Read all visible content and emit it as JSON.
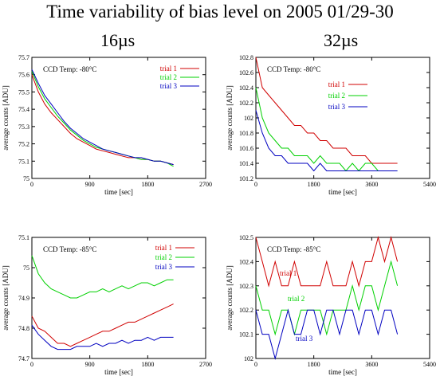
{
  "title": "Time variability of bias level on 2005 01/29-30",
  "column_titles": [
    "16µs",
    "32µs"
  ],
  "colors": {
    "trial 1": "#d00000",
    "trial 2": "#00d000",
    "trial 3": "#0000c0"
  },
  "chart_data": [
    {
      "type": "line",
      "panel": "top-left",
      "annotation": "CCD Temp: -80°C",
      "xlabel": "time [sec]",
      "ylabel": "average counts [ADU]",
      "xlim": [
        0,
        2700
      ],
      "ylim": [
        75.0,
        75.7
      ],
      "xticks": [
        0,
        900,
        1800,
        2700
      ],
      "yticks": [
        75.0,
        75.1,
        75.2,
        75.3,
        75.4,
        75.5,
        75.6,
        75.7
      ],
      "ytick_labels": [
        "75",
        "75.1",
        "75.2",
        "75.3",
        "75.4",
        "75.5",
        "75.6",
        "75.7"
      ],
      "grid": false,
      "legend": "top-right",
      "series": [
        {
          "name": "trial 1",
          "x": [
            0,
            100,
            200,
            300,
            400,
            500,
            600,
            700,
            800,
            900,
            1000,
            1100,
            1200,
            1300,
            1400,
            1500,
            1600,
            1700,
            1800,
            1900,
            2000,
            2100,
            2200
          ],
          "y": [
            75.6,
            75.5,
            75.43,
            75.38,
            75.34,
            75.3,
            75.26,
            75.23,
            75.21,
            75.19,
            75.17,
            75.16,
            75.15,
            75.14,
            75.13,
            75.12,
            75.12,
            75.11,
            75.11,
            75.1,
            75.1,
            75.09,
            75.08
          ]
        },
        {
          "name": "trial 2",
          "x": [
            0,
            100,
            200,
            300,
            400,
            500,
            600,
            700,
            800,
            900,
            1000,
            1100,
            1200,
            1300,
            1400,
            1500,
            1600,
            1700,
            1800,
            1900,
            2000,
            2100,
            2200
          ],
          "y": [
            75.62,
            75.53,
            75.46,
            75.41,
            75.36,
            75.32,
            75.28,
            75.25,
            75.22,
            75.2,
            75.18,
            75.17,
            75.16,
            75.15,
            75.14,
            75.13,
            75.12,
            75.11,
            75.11,
            75.1,
            75.1,
            75.09,
            75.07
          ]
        },
        {
          "name": "trial 3",
          "x": [
            0,
            100,
            200,
            300,
            400,
            500,
            600,
            700,
            800,
            900,
            1000,
            1100,
            1200,
            1300,
            1400,
            1500,
            1600,
            1700,
            1800,
            1900,
            2000,
            2100,
            2200
          ],
          "y": [
            75.63,
            75.55,
            75.48,
            75.43,
            75.38,
            75.33,
            75.29,
            75.26,
            75.23,
            75.21,
            75.19,
            75.17,
            75.16,
            75.15,
            75.14,
            75.13,
            75.12,
            75.12,
            75.11,
            75.1,
            75.1,
            75.09,
            75.08
          ]
        }
      ]
    },
    {
      "type": "line",
      "panel": "top-right",
      "annotation": "CCD Temp: -80°C",
      "xlabel": "time [sec]",
      "ylabel": "average counts [ADU]",
      "xlim": [
        0,
        5400
      ],
      "ylim": [
        101.2,
        102.8
      ],
      "xticks": [
        0,
        1800,
        3600,
        5400
      ],
      "yticks": [
        101.2,
        101.4,
        101.6,
        101.8,
        102.0,
        102.2,
        102.4,
        102.6,
        102.8
      ],
      "ytick_labels": [
        "101.2",
        "101.4",
        "101.6",
        "101.8",
        "102",
        "102.2",
        "102.4",
        "102.6",
        "102.8"
      ],
      "grid": false,
      "legend": "top-right",
      "series": [
        {
          "name": "trial 1",
          "x": [
            0,
            200,
            400,
            600,
            800,
            1000,
            1200,
            1400,
            1600,
            1800,
            2000,
            2200,
            2400,
            2600,
            2800,
            3000,
            3200,
            3400,
            3600,
            3800,
            4000,
            4200,
            4400
          ],
          "y": [
            102.8,
            102.4,
            102.3,
            102.2,
            102.1,
            102.0,
            101.9,
            101.9,
            101.8,
            101.8,
            101.7,
            101.7,
            101.6,
            101.6,
            101.6,
            101.5,
            101.5,
            101.5,
            101.4,
            101.4,
            101.4,
            101.4,
            101.4
          ]
        },
        {
          "name": "trial 2",
          "x": [
            0,
            200,
            400,
            600,
            800,
            1000,
            1200,
            1400,
            1600,
            1800,
            2000,
            2200,
            2400,
            2600,
            2800,
            3000,
            3200,
            3400,
            3600,
            3800,
            4000,
            4200,
            4400
          ],
          "y": [
            102.4,
            102.0,
            101.8,
            101.7,
            101.6,
            101.6,
            101.5,
            101.5,
            101.5,
            101.4,
            101.5,
            101.4,
            101.4,
            101.4,
            101.3,
            101.4,
            101.3,
            101.4,
            101.4,
            101.3,
            101.3,
            101.3,
            101.3
          ]
        },
        {
          "name": "trial 3",
          "x": [
            0,
            200,
            400,
            600,
            800,
            1000,
            1200,
            1400,
            1600,
            1800,
            2000,
            2200,
            2400,
            2600,
            2800,
            3000,
            3200,
            3400,
            3600,
            3800,
            4000,
            4200,
            4400
          ],
          "y": [
            102.1,
            101.8,
            101.6,
            101.5,
            101.5,
            101.4,
            101.4,
            101.4,
            101.4,
            101.3,
            101.4,
            101.3,
            101.3,
            101.3,
            101.3,
            101.3,
            101.3,
            101.3,
            101.3,
            101.3,
            101.3,
            101.3,
            101.3
          ]
        }
      ]
    },
    {
      "type": "line",
      "panel": "bottom-left",
      "annotation": "CCD Temp: -85°C",
      "xlabel": "time [sec]",
      "ylabel": "average counts [ADU]",
      "xlim": [
        0,
        2700
      ],
      "ylim": [
        74.7,
        75.1
      ],
      "xticks": [
        0,
        900,
        1800,
        2700
      ],
      "yticks": [
        74.7,
        74.8,
        74.9,
        75.0,
        75.1
      ],
      "ytick_labels": [
        "74.7",
        "74.8",
        "74.9",
        "75",
        "75.1"
      ],
      "grid": false,
      "legend": "top-right",
      "series": [
        {
          "name": "trial 1",
          "x": [
            0,
            100,
            200,
            300,
            400,
            500,
            600,
            700,
            800,
            900,
            1000,
            1100,
            1200,
            1300,
            1400,
            1500,
            1600,
            1700,
            1800,
            1900,
            2000,
            2100,
            2200
          ],
          "y": [
            74.84,
            74.8,
            74.79,
            74.77,
            74.75,
            74.75,
            74.74,
            74.75,
            74.76,
            74.77,
            74.78,
            74.79,
            74.79,
            74.8,
            74.81,
            74.82,
            74.82,
            74.83,
            74.84,
            74.85,
            74.86,
            74.87,
            74.88
          ]
        },
        {
          "name": "trial 2",
          "x": [
            0,
            100,
            200,
            300,
            400,
            500,
            600,
            700,
            800,
            900,
            1000,
            1100,
            1200,
            1300,
            1400,
            1500,
            1600,
            1700,
            1800,
            1900,
            2000,
            2100,
            2200
          ],
          "y": [
            75.04,
            74.98,
            74.95,
            74.93,
            74.92,
            74.91,
            74.9,
            74.9,
            74.91,
            74.92,
            74.92,
            74.93,
            74.92,
            74.93,
            74.94,
            74.93,
            74.94,
            74.95,
            74.95,
            74.94,
            74.95,
            74.96,
            74.96
          ]
        },
        {
          "name": "trial 3",
          "x": [
            0,
            100,
            200,
            300,
            400,
            500,
            600,
            700,
            800,
            900,
            1000,
            1100,
            1200,
            1300,
            1400,
            1500,
            1600,
            1700,
            1800,
            1900,
            2000,
            2100,
            2200
          ],
          "y": [
            74.81,
            74.78,
            74.76,
            74.74,
            74.73,
            74.73,
            74.73,
            74.74,
            74.74,
            74.74,
            74.75,
            74.74,
            74.75,
            74.75,
            74.76,
            74.75,
            74.76,
            74.76,
            74.77,
            74.76,
            74.77,
            74.77,
            74.77
          ]
        }
      ]
    },
    {
      "type": "line",
      "panel": "bottom-right",
      "annotation": "CCD Temp: -85°C",
      "xlabel": "time [sec]",
      "ylabel": "average counts [ADU]",
      "xlim": [
        0,
        5400
      ],
      "ylim": [
        102.0,
        102.5
      ],
      "xticks": [
        0,
        1800,
        3600,
        5400
      ],
      "yticks": [
        102.0,
        102.1,
        102.2,
        102.3,
        102.4,
        102.5
      ],
      "ytick_labels": [
        "102",
        "102.1",
        "102.2",
        "102.3",
        "102.4",
        "102.5"
      ],
      "grid": false,
      "legend": "inline",
      "series": [
        {
          "name": "trial 1",
          "x": [
            0,
            200,
            400,
            600,
            800,
            1000,
            1200,
            1400,
            1600,
            1800,
            2000,
            2200,
            2400,
            2600,
            2800,
            3000,
            3200,
            3400,
            3600,
            3800,
            4000,
            4200,
            4400
          ],
          "y": [
            102.5,
            102.4,
            102.3,
            102.4,
            102.3,
            102.3,
            102.4,
            102.3,
            102.3,
            102.3,
            102.3,
            102.4,
            102.3,
            102.3,
            102.3,
            102.4,
            102.3,
            102.4,
            102.4,
            102.5,
            102.4,
            102.5,
            102.4
          ]
        },
        {
          "name": "trial 2",
          "x": [
            0,
            200,
            400,
            600,
            800,
            1000,
            1200,
            1400,
            1600,
            1800,
            2000,
            2200,
            2400,
            2600,
            2800,
            3000,
            3200,
            3400,
            3600,
            3800,
            4000,
            4200,
            4400
          ],
          "y": [
            102.3,
            102.2,
            102.2,
            102.1,
            102.2,
            102.2,
            102.1,
            102.2,
            102.2,
            102.2,
            102.2,
            102.1,
            102.2,
            102.2,
            102.2,
            102.3,
            102.2,
            102.3,
            102.3,
            102.2,
            102.3,
            102.4,
            102.3
          ]
        },
        {
          "name": "trial 3",
          "x": [
            0,
            200,
            400,
            600,
            800,
            1000,
            1200,
            1400,
            1600,
            1800,
            2000,
            2200,
            2400,
            2600,
            2800,
            3000,
            3200,
            3400,
            3600,
            3800,
            4000,
            4200,
            4400
          ],
          "y": [
            102.2,
            102.1,
            102.1,
            102.0,
            102.1,
            102.2,
            102.1,
            102.1,
            102.2,
            102.2,
            102.1,
            102.2,
            102.2,
            102.1,
            102.2,
            102.2,
            102.1,
            102.2,
            102.2,
            102.1,
            102.2,
            102.2,
            102.1
          ]
        }
      ]
    }
  ]
}
